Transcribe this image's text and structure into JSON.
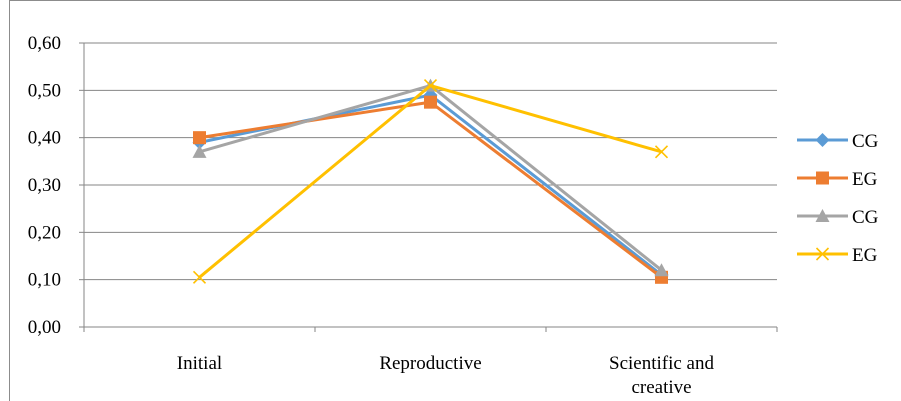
{
  "chart_data": {
    "type": "line",
    "title": "",
    "xlabel": "",
    "ylabel": "",
    "ylim": [
      0,
      0.6
    ],
    "y_ticks": [
      "0,00",
      "0,10",
      "0,20",
      "0,30",
      "0,40",
      "0,50",
      "0,60"
    ],
    "y_tick_values": [
      0,
      0.1,
      0.2,
      0.3,
      0.4,
      0.5,
      0.6
    ],
    "categories": [
      "Initial",
      "Reproductive",
      "Scientific and creative"
    ],
    "category_lines": [
      [
        "Initial"
      ],
      [
        "Reproductive"
      ],
      [
        "Scientific and",
        "creative"
      ]
    ],
    "grid": true,
    "legend_position": "right",
    "series": [
      {
        "name": "CG",
        "values": [
          0.39,
          0.49,
          0.11
        ],
        "color": "#5b9bd5",
        "marker": "diamond"
      },
      {
        "name": "EG",
        "values": [
          0.4,
          0.475,
          0.105
        ],
        "color": "#ed7d31",
        "marker": "square"
      },
      {
        "name": "CG",
        "values": [
          0.37,
          0.51,
          0.12
        ],
        "color": "#a5a5a5",
        "marker": "triangle"
      },
      {
        "name": "EG",
        "values": [
          0.105,
          0.51,
          0.37
        ],
        "color": "#ffc000",
        "marker": "x"
      }
    ]
  }
}
